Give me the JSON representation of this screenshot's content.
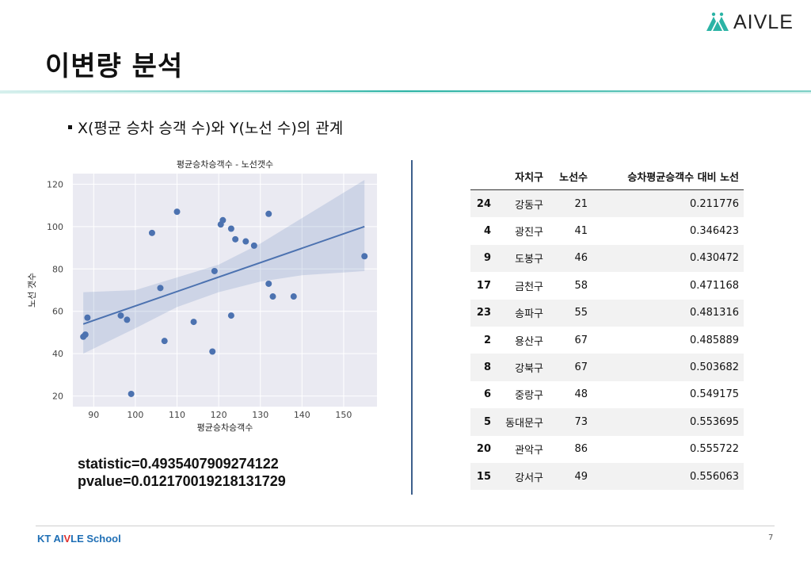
{
  "slide": {
    "title": "이변량 분석",
    "logo_text": "AIVLE",
    "bullet": "X(평균 승차 승객 수)와 Y(노선 수)의 관계",
    "stats": {
      "statistic": "statistic=0.4935407909274122",
      "pvalue": "pvalue=0.012170019218131729"
    },
    "footer": {
      "brand_a": "KT AI",
      "brand_b": "V",
      "brand_c": "LE School",
      "page": "7"
    },
    "colors": {
      "teal_line": "#2bb3a5",
      "marker": "#4c72b0",
      "divider": "#3d5f8c",
      "brand_blue": "#1f6fb5",
      "brand_red": "#e0312f"
    }
  },
  "chart_data": {
    "type": "scatter",
    "title": "평균승차승객수 - 노선갯수",
    "xlabel": "평균승차승객수",
    "ylabel": "노선 갯수",
    "xlim": [
      85,
      158
    ],
    "ylim": [
      15,
      125
    ],
    "xticks": [
      90,
      100,
      110,
      120,
      130,
      140,
      150
    ],
    "yticks": [
      20,
      40,
      60,
      80,
      100,
      120
    ],
    "grid": true,
    "points": [
      {
        "x": 87.5,
        "y": 48
      },
      {
        "x": 88,
        "y": 49
      },
      {
        "x": 88.5,
        "y": 57
      },
      {
        "x": 96.5,
        "y": 58
      },
      {
        "x": 98,
        "y": 56
      },
      {
        "x": 99,
        "y": 21
      },
      {
        "x": 104,
        "y": 97
      },
      {
        "x": 106,
        "y": 71
      },
      {
        "x": 107,
        "y": 46
      },
      {
        "x": 110,
        "y": 107
      },
      {
        "x": 114,
        "y": 55
      },
      {
        "x": 118.5,
        "y": 41
      },
      {
        "x": 119,
        "y": 79
      },
      {
        "x": 120.5,
        "y": 101
      },
      {
        "x": 121,
        "y": 103
      },
      {
        "x": 123,
        "y": 99
      },
      {
        "x": 123,
        "y": 58
      },
      {
        "x": 124,
        "y": 94
      },
      {
        "x": 126.5,
        "y": 93
      },
      {
        "x": 128.5,
        "y": 91
      },
      {
        "x": 132,
        "y": 106
      },
      {
        "x": 132,
        "y": 73
      },
      {
        "x": 133,
        "y": 67
      },
      {
        "x": 138,
        "y": 67
      },
      {
        "x": 155,
        "y": 86
      }
    ],
    "regression": {
      "x": [
        87.5,
        155
      ],
      "y": [
        54,
        100
      ]
    },
    "ci_band": {
      "x": [
        87.5,
        100,
        110,
        120,
        130,
        140,
        155
      ],
      "lower": [
        40,
        52,
        62,
        69,
        74,
        77,
        79
      ],
      "upper": [
        69,
        70,
        76,
        82,
        92,
        104,
        122
      ]
    }
  },
  "table": {
    "columns": [
      "",
      "자치구",
      "노선수",
      "승차평균승객수 대비 노선"
    ],
    "rows": [
      [
        "24",
        "강동구",
        "21",
        "0.211776"
      ],
      [
        "4",
        "광진구",
        "41",
        "0.346423"
      ],
      [
        "9",
        "도봉구",
        "46",
        "0.430472"
      ],
      [
        "17",
        "금천구",
        "58",
        "0.471168"
      ],
      [
        "23",
        "송파구",
        "55",
        "0.481316"
      ],
      [
        "2",
        "용산구",
        "67",
        "0.485889"
      ],
      [
        "8",
        "강북구",
        "67",
        "0.503682"
      ],
      [
        "6",
        "중랑구",
        "48",
        "0.549175"
      ],
      [
        "5",
        "동대문구",
        "73",
        "0.553695"
      ],
      [
        "20",
        "관악구",
        "86",
        "0.555722"
      ],
      [
        "15",
        "강서구",
        "49",
        "0.556063"
      ]
    ]
  }
}
